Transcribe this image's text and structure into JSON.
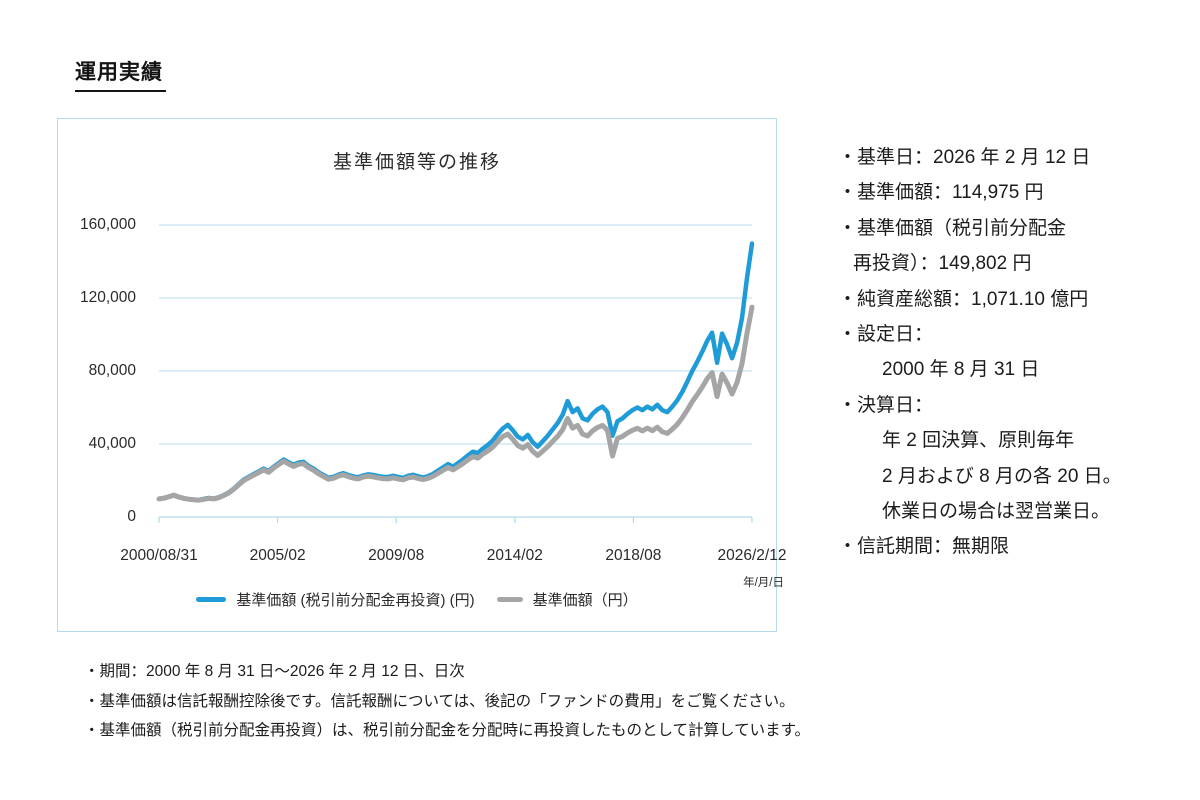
{
  "page": {
    "title": "運用実績"
  },
  "colors": {
    "accent_blue": "#1F9CD8",
    "series_gray": "#A5A5A5",
    "grid": "#C7E5F4",
    "panel_border": "#B5DBEE",
    "text": "#1C1C1C"
  },
  "chart_data": {
    "type": "line",
    "title": "基準価額等の推移",
    "x_axis_note": "年/月/日",
    "x_tick_labels": [
      "2000/08/31",
      "2005/02",
      "2009/08",
      "2014/02",
      "2018/08",
      "2026/2/12"
    ],
    "y_ticks": [
      {
        "value": 0,
        "label": "0"
      },
      {
        "value": 40000,
        "label": "40,000"
      },
      {
        "value": 80000,
        "label": "80,000"
      },
      {
        "value": 120000,
        "label": "120,000"
      },
      {
        "value": 160000,
        "label": "160,000"
      }
    ],
    "ylim": [
      0,
      160000
    ],
    "grid": "horizontal",
    "legend_position": "bottom",
    "series": [
      {
        "name": "基準価額 (税引前分配金再投資) (円)",
        "color": "#1F9CD8",
        "final_value": 149802,
        "values": [
          10000,
          10400,
          11200,
          12100,
          11000,
          10300,
          9800,
          9500,
          9300,
          9900,
          10400,
          10100,
          10800,
          12000,
          13500,
          15500,
          18000,
          20500,
          22000,
          23500,
          25000,
          26500,
          25200,
          27500,
          29500,
          31500,
          30000,
          28600,
          29800,
          30200,
          28000,
          26500,
          24500,
          23000,
          21500,
          22000,
          23200,
          24000,
          23000,
          22200,
          21800,
          22800,
          23400,
          23000,
          22400,
          22000,
          21900,
          22600,
          21900,
          21500,
          22600,
          23100,
          22300,
          21600,
          22400,
          23600,
          25500,
          27200,
          29000,
          27600,
          29500,
          31500,
          33800,
          35800,
          35000,
          37500,
          39500,
          42000,
          45500,
          48500,
          50500,
          47500,
          44000,
          42500,
          45000,
          41000,
          38500,
          41500,
          44500,
          48000,
          51500,
          56000,
          63500,
          57500,
          59500,
          54000,
          53000,
          56500,
          59000,
          60500,
          57500,
          44500,
          52500,
          54000,
          56500,
          58500,
          60000,
          58500,
          60500,
          59000,
          61500,
          58500,
          57500,
          60500,
          64000,
          68500,
          74000,
          80000,
          85000,
          90500,
          96500,
          101000,
          84500,
          100500,
          94500,
          87000,
          95500,
          109000,
          131000,
          149802
        ]
      },
      {
        "name": "基準価額（円）",
        "color": "#A5A5A5",
        "final_value": 114975,
        "values": [
          9900,
          10300,
          11100,
          11900,
          10900,
          10200,
          9700,
          9400,
          9200,
          9700,
          10200,
          9900,
          10600,
          11800,
          13200,
          15200,
          17600,
          20000,
          21500,
          22900,
          24400,
          25800,
          24500,
          26800,
          28700,
          30600,
          29100,
          27700,
          28900,
          29200,
          27100,
          25600,
          23700,
          22200,
          20700,
          21200,
          22400,
          23100,
          22100,
          21300,
          20900,
          21900,
          22400,
          22000,
          21400,
          21000,
          20900,
          21500,
          20800,
          20400,
          21500,
          21900,
          21100,
          20500,
          21200,
          22300,
          24000,
          25600,
          27200,
          25800,
          27500,
          29300,
          31400,
          33100,
          32300,
          34500,
          36200,
          38400,
          41500,
          44100,
          45500,
          42600,
          39200,
          37700,
          39700,
          36000,
          33700,
          36100,
          38600,
          41400,
          44200,
          47800,
          54000,
          48700,
          50200,
          45400,
          44400,
          47200,
          49100,
          50200,
          47500,
          33400,
          43100,
          44100,
          46000,
          47500,
          48600,
          47200,
          48700,
          47300,
          49200,
          46700,
          45800,
          48100,
          50800,
          54300,
          58500,
          63200,
          67000,
          71200,
          75800,
          79100,
          66000,
          78300,
          73400,
          67400,
          73800,
          84000,
          100700,
          114975
        ]
      }
    ]
  },
  "info_panel": {
    "lines": [
      {
        "text": "・基準日：2026 年 2 月 12 日",
        "indent": 0
      },
      {
        "text": "・基準価額：114,975 円",
        "indent": 0
      },
      {
        "text": "・基準価額（税引前分配金",
        "indent": 0
      },
      {
        "text": "再投資）：149,802 円",
        "indent": 1
      },
      {
        "text": "・純資産総額：1,071.10 億円",
        "indent": 0
      },
      {
        "text": "・設定日：",
        "indent": 0
      },
      {
        "text": "2000 年 8 月 31 日",
        "indent": 2
      },
      {
        "text": "・決算日：",
        "indent": 0
      },
      {
        "text": "年 2 回決算、原則毎年",
        "indent": 2
      },
      {
        "text": "2 月および 8 月の各 20 日。",
        "indent": 2
      },
      {
        "text": "休業日の場合は翌営業日。",
        "indent": 2
      },
      {
        "text": "・信託期間：無期限",
        "indent": 0
      }
    ]
  },
  "footnotes": [
    "・期間：2000 年 8 月 31 日～2026 年 2 月 12 日、日次",
    "・基準価額は信託報酬控除後です。信託報酬については、後記の「ファンドの費用」をご覧ください。",
    "・基準価額（税引前分配金再投資）は、税引前分配金を分配時に再投資したものとして計算しています。"
  ]
}
